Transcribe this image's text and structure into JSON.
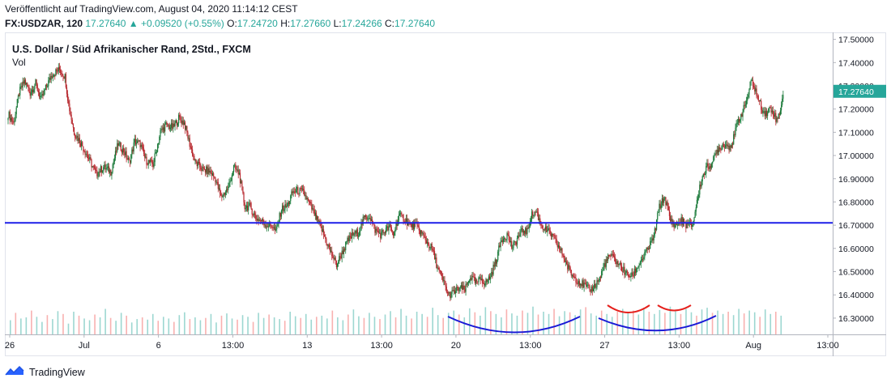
{
  "header": {
    "published": "Veröffentlicht auf TradingView.com, August 04, 2020 11:14:12 CEST",
    "symbol": "FX:USDZAR, 120",
    "last": "17.27640",
    "change": "+0.09520 (+0.55%)",
    "o_label": "O:",
    "o_value": "17.24720",
    "h_label": "H:",
    "h_value": "17.27660",
    "l_label": "L:",
    "l_value": "17.24266",
    "c_label": "C:",
    "c_value": "17.27640"
  },
  "footer": {
    "brand": "TradingView",
    "logo_icon": "tradingview-logo-icon"
  },
  "colors": {
    "up": "#26a69a",
    "down": "#ef5350",
    "candle_up": "#1b7a3a",
    "candle_down": "#b7272d",
    "resistance": "#1d1ee8",
    "pattern_blue": "#1a1ad6",
    "pattern_red": "#e5201c"
  },
  "chart_data": {
    "type": "candlestick",
    "title": "U.S. Dollar / Süd Afrikanischer Rand, 2Std., FXCM",
    "volume_label": "Vol",
    "price_axis": {
      "ticks": [
        "17.50000",
        "17.40000",
        "17.30000",
        "17.20000",
        "17.10000",
        "17.00000",
        "16.90000",
        "16.80000",
        "16.70000",
        "16.60000",
        "16.50000",
        "16.40000",
        "16.30000"
      ],
      "range": [
        16.23,
        17.53
      ],
      "current_price": "17.27640"
    },
    "time_axis": {
      "ticks": [
        "26",
        "Jul",
        "6",
        "13:00",
        "13",
        "13:00",
        "20",
        "13:00",
        "27",
        "13:00",
        "Aug",
        "13:00"
      ]
    },
    "horizontal_line": {
      "price": 16.71
    },
    "close_path": [
      [
        0,
        17.18
      ],
      [
        6,
        17.14
      ],
      [
        12,
        17.27
      ],
      [
        18,
        17.32
      ],
      [
        24,
        17.27
      ],
      [
        30,
        17.31
      ],
      [
        36,
        17.24
      ],
      [
        42,
        17.3
      ],
      [
        48,
        17.35
      ],
      [
        56,
        17.37
      ],
      [
        62,
        17.34
      ],
      [
        66,
        17.22
      ],
      [
        72,
        17.1
      ],
      [
        80,
        17.05
      ],
      [
        90,
        16.97
      ],
      [
        96,
        16.92
      ],
      [
        104,
        16.95
      ],
      [
        112,
        16.93
      ],
      [
        120,
        17.05
      ],
      [
        126,
        17.02
      ],
      [
        132,
        16.97
      ],
      [
        138,
        17.06
      ],
      [
        144,
        17.05
      ],
      [
        150,
        16.98
      ],
      [
        158,
        16.96
      ],
      [
        166,
        17.1
      ],
      [
        172,
        17.13
      ],
      [
        180,
        17.12
      ],
      [
        186,
        17.16
      ],
      [
        192,
        17.14
      ],
      [
        198,
        17.05
      ],
      [
        204,
        16.97
      ],
      [
        212,
        16.94
      ],
      [
        220,
        16.93
      ],
      [
        226,
        16.9
      ],
      [
        232,
        16.82
      ],
      [
        240,
        16.86
      ],
      [
        246,
        16.95
      ],
      [
        252,
        16.92
      ],
      [
        258,
        16.78
      ],
      [
        264,
        16.78
      ],
      [
        270,
        16.73
      ],
      [
        276,
        16.72
      ],
      [
        282,
        16.7
      ],
      [
        288,
        16.7
      ],
      [
        292,
        16.67
      ],
      [
        298,
        16.77
      ],
      [
        304,
        16.78
      ],
      [
        310,
        16.84
      ],
      [
        316,
        16.85
      ],
      [
        322,
        16.84
      ],
      [
        330,
        16.78
      ],
      [
        336,
        16.73
      ],
      [
        342,
        16.68
      ],
      [
        348,
        16.62
      ],
      [
        352,
        16.58
      ],
      [
        358,
        16.53
      ],
      [
        364,
        16.58
      ],
      [
        370,
        16.63
      ],
      [
        376,
        16.66
      ],
      [
        382,
        16.67
      ],
      [
        388,
        16.73
      ],
      [
        394,
        16.74
      ],
      [
        400,
        16.68
      ],
      [
        406,
        16.66
      ],
      [
        412,
        16.68
      ],
      [
        416,
        16.69
      ],
      [
        420,
        16.66
      ],
      [
        426,
        16.74
      ],
      [
        432,
        16.73
      ],
      [
        438,
        16.7
      ],
      [
        444,
        16.7
      ],
      [
        450,
        16.67
      ],
      [
        456,
        16.63
      ],
      [
        462,
        16.6
      ],
      [
        468,
        16.52
      ],
      [
        474,
        16.46
      ],
      [
        480,
        16.4
      ],
      [
        486,
        16.41
      ],
      [
        492,
        16.43
      ],
      [
        498,
        16.42
      ],
      [
        504,
        16.48
      ],
      [
        510,
        16.45
      ],
      [
        516,
        16.47
      ],
      [
        520,
        16.45
      ],
      [
        526,
        16.48
      ],
      [
        532,
        16.55
      ],
      [
        538,
        16.64
      ],
      [
        544,
        16.66
      ],
      [
        550,
        16.6
      ],
      [
        556,
        16.65
      ],
      [
        562,
        16.68
      ],
      [
        566,
        16.67
      ],
      [
        570,
        16.74
      ],
      [
        576,
        16.76
      ],
      [
        580,
        16.71
      ],
      [
        586,
        16.68
      ],
      [
        592,
        16.66
      ],
      [
        598,
        16.62
      ],
      [
        604,
        16.58
      ],
      [
        610,
        16.52
      ],
      [
        616,
        16.48
      ],
      [
        622,
        16.46
      ],
      [
        628,
        16.44
      ],
      [
        634,
        16.42
      ],
      [
        640,
        16.44
      ],
      [
        646,
        16.48
      ],
      [
        650,
        16.53
      ],
      [
        656,
        16.57
      ],
      [
        662,
        16.55
      ],
      [
        668,
        16.52
      ],
      [
        674,
        16.49
      ],
      [
        680,
        16.48
      ],
      [
        686,
        16.52
      ],
      [
        692,
        16.56
      ],
      [
        698,
        16.6
      ],
      [
        704,
        16.65
      ],
      [
        710,
        16.78
      ],
      [
        716,
        16.82
      ],
      [
        722,
        16.72
      ],
      [
        728,
        16.7
      ],
      [
        734,
        16.72
      ],
      [
        740,
        16.7
      ],
      [
        746,
        16.7
      ],
      [
        750,
        16.78
      ],
      [
        756,
        16.9
      ],
      [
        762,
        16.95
      ],
      [
        768,
        16.97
      ],
      [
        774,
        17.03
      ],
      [
        780,
        17.05
      ],
      [
        786,
        17.04
      ],
      [
        790,
        17.06
      ],
      [
        796,
        17.15
      ],
      [
        802,
        17.2
      ],
      [
        806,
        17.25
      ],
      [
        810,
        17.32
      ],
      [
        814,
        17.29
      ],
      [
        818,
        17.24
      ],
      [
        822,
        17.2
      ],
      [
        826,
        17.18
      ],
      [
        830,
        17.2
      ],
      [
        834,
        17.19
      ],
      [
        838,
        17.15
      ],
      [
        842,
        17.2
      ],
      [
        845,
        17.27
      ]
    ],
    "volume_levels": [
      0.25,
      0.38,
      0.28,
      0.3,
      0.42,
      0.31,
      0.22,
      0.34,
      0.27,
      0.41,
      0.36,
      0.19,
      0.4,
      0.33,
      0.28,
      0.25,
      0.35,
      0.3,
      0.45,
      0.29,
      0.24,
      0.38,
      0.33,
      0.21,
      0.27,
      0.3,
      0.26,
      0.36,
      0.24,
      0.31,
      0.28,
      0.22,
      0.34,
      0.39,
      0.27,
      0.3,
      0.25,
      0.29,
      0.36,
      0.21,
      0.33,
      0.37,
      0.28,
      0.26,
      0.34,
      0.31,
      0.22,
      0.38,
      0.29,
      0.35,
      0.3,
      0.27,
      0.24,
      0.4,
      0.32,
      0.29,
      0.36,
      0.26,
      0.31,
      0.33,
      0.28,
      0.42,
      0.3,
      0.25,
      0.35,
      0.44,
      0.32,
      0.29,
      0.38,
      0.31,
      0.27,
      0.35,
      0.41,
      0.3,
      0.45,
      0.33,
      0.28,
      0.4,
      0.36,
      0.31,
      0.47,
      0.34,
      0.29,
      0.38,
      0.42,
      0.35,
      0.3,
      0.46,
      0.39,
      0.33,
      0.48,
      0.41,
      0.36,
      0.3,
      0.44,
      0.37,
      0.33,
      0.42,
      0.38,
      0.49,
      0.35,
      0.4,
      0.36,
      0.45,
      0.32,
      0.41,
      0.39,
      0.34,
      0.44,
      0.48,
      0.37,
      0.33,
      0.42,
      0.36,
      0.31,
      0.4,
      0.45,
      0.38,
      0.42,
      0.35,
      0.47,
      0.4,
      0.36,
      0.43,
      0.38,
      0.49,
      0.41,
      0.36,
      0.45,
      0.39,
      0.33,
      0.44,
      0.47,
      0.38,
      0.42,
      0.36,
      0.4,
      0.34,
      0.45,
      0.37,
      0.42,
      0.39,
      0.31,
      0.44,
      0.36,
      0.4,
      0.33
    ]
  }
}
